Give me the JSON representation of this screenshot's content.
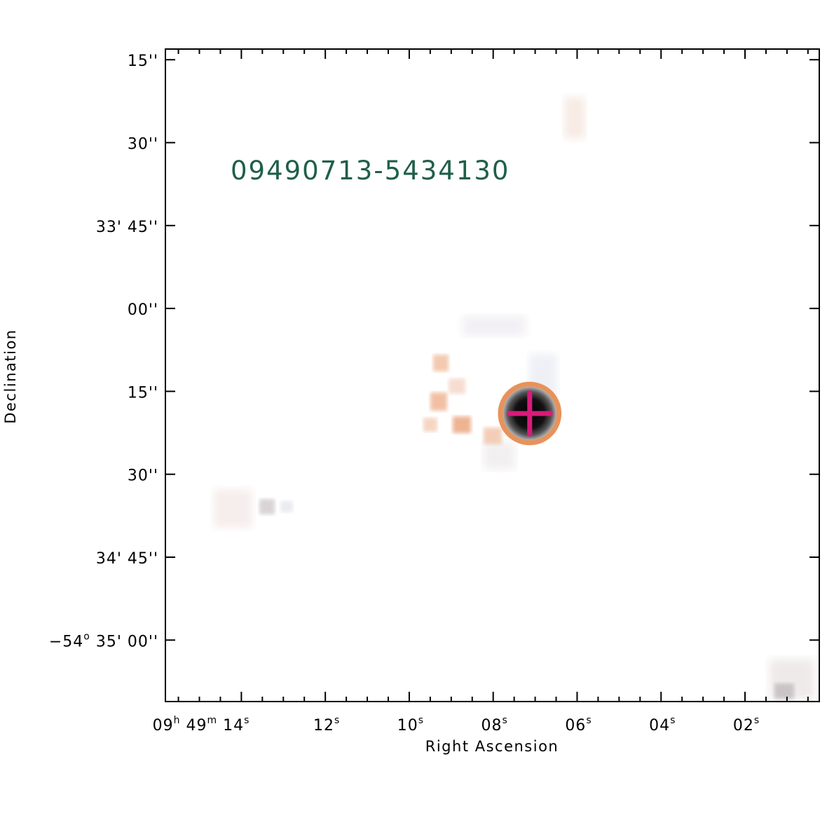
{
  "chart_data": {
    "type": "image",
    "title": "09490713-5434130",
    "xlabel": "Right Ascension",
    "ylabel": "Declination",
    "colors": {
      "frame": "#000000",
      "title": "#1f5f4a",
      "circle": "#e8925a",
      "cross": "#d81b7a",
      "source_core": "#000000",
      "faint_emission": "#f0b896"
    },
    "x_ticks": [
      {
        "parts": [
          {
            "t": "09"
          },
          {
            "t": "h",
            "sup": true
          },
          {
            "t": " 49"
          },
          {
            "t": "m",
            "sup": true
          },
          {
            "t": " 14"
          },
          {
            "t": "s",
            "sup": true
          }
        ],
        "value": 14
      },
      {
        "parts": [
          {
            "t": "12"
          },
          {
            "t": "s",
            "sup": true
          }
        ],
        "value": 12
      },
      {
        "parts": [
          {
            "t": "10"
          },
          {
            "t": "s",
            "sup": true
          }
        ],
        "value": 10
      },
      {
        "parts": [
          {
            "t": "08"
          },
          {
            "t": "s",
            "sup": true
          }
        ],
        "value": 8
      },
      {
        "parts": [
          {
            "t": "06"
          },
          {
            "t": "s",
            "sup": true
          }
        ],
        "value": 6
      },
      {
        "parts": [
          {
            "t": "04"
          },
          {
            "t": "s",
            "sup": true
          }
        ],
        "value": 4
      },
      {
        "parts": [
          {
            "t": "02"
          },
          {
            "t": "s",
            "sup": true
          }
        ],
        "value": 2
      }
    ],
    "y_ticks": [
      {
        "parts": [
          {
            "t": "15''"
          }
        ],
        "value": 15
      },
      {
        "parts": [
          {
            "t": "30''"
          }
        ],
        "value": 30
      },
      {
        "parts": [
          {
            "t": "33' 45''"
          }
        ],
        "value": 45
      },
      {
        "parts": [
          {
            "t": "00''"
          }
        ],
        "value": 60
      },
      {
        "parts": [
          {
            "t": "15''"
          }
        ],
        "value": 75
      },
      {
        "parts": [
          {
            "t": "30''"
          }
        ],
        "value": 90
      },
      {
        "parts": [
          {
            "t": "34' 45''"
          }
        ],
        "value": 105
      },
      {
        "parts": [
          {
            "t": "−54"
          },
          {
            "t": "o",
            "sup": true
          },
          {
            "t": " 35' 00''"
          }
        ],
        "value": 120
      }
    ],
    "xlim": [
      15.81,
      0.23
    ],
    "ylim": [
      13.07,
      131.12
    ],
    "target": {
      "ra_s": 7.13,
      "dec_arcsec": 79.0,
      "circle_radius_arcsec": 5.3
    },
    "minor_x_step": 0.5,
    "minor_y_step": 5
  }
}
